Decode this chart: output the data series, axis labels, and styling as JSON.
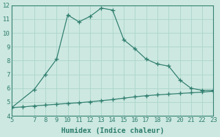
{
  "xlabel": "Humidex (Indice chaleur)",
  "x_line1": [
    5,
    7,
    8,
    9,
    10,
    11,
    12,
    13,
    14,
    15,
    16,
    17,
    18,
    19,
    20,
    21,
    22,
    23
  ],
  "y_line1": [
    4.6,
    5.9,
    7.0,
    8.1,
    11.3,
    10.8,
    11.2,
    11.8,
    11.65,
    9.5,
    8.85,
    8.1,
    7.75,
    7.6,
    6.6,
    6.0,
    5.85,
    5.85
  ],
  "x_line2": [
    5,
    6,
    7,
    8,
    9,
    10,
    11,
    12,
    13,
    14,
    15,
    16,
    17,
    18,
    19,
    20,
    21,
    22,
    23
  ],
  "y_line2": [
    4.6,
    4.65,
    4.72,
    4.78,
    4.84,
    4.9,
    4.95,
    5.02,
    5.1,
    5.18,
    5.28,
    5.38,
    5.46,
    5.52,
    5.57,
    5.62,
    5.67,
    5.72,
    5.78
  ],
  "line_color": "#2e7d6e",
  "bg_color": "#cce8e0",
  "grid_color": "#b0d8cf",
  "xlim": [
    5,
    23
  ],
  "ylim": [
    4,
    12
  ],
  "xticks": [
    5,
    7,
    8,
    9,
    10,
    11,
    12,
    13,
    14,
    15,
    16,
    17,
    18,
    19,
    20,
    21,
    22,
    23
  ],
  "yticks": [
    4,
    5,
    6,
    7,
    8,
    9,
    10,
    11,
    12
  ],
  "marker": "+",
  "linewidth": 0.9,
  "markersize": 4,
  "tick_fontsize": 6.5,
  "xlabel_fontsize": 7.5
}
